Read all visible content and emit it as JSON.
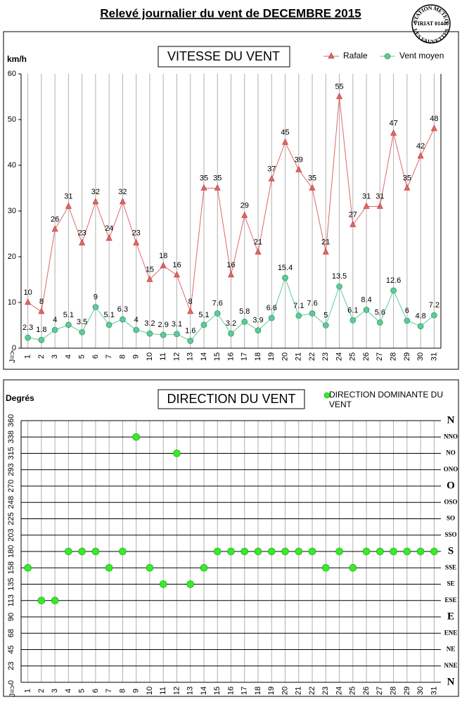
{
  "page_title": "Relevé journalier du vent de DECEMBRE 2015",
  "stamp": {
    "top": "STATION METEO",
    "middle": "VIRIAT 01440",
    "bottom": "LES FAUVETTES"
  },
  "chart_data": [
    {
      "type": "line",
      "title": "VITESSE DU VENT",
      "y_label": "km/h",
      "x_label": "J=>",
      "categories": [
        "1",
        "2",
        "3",
        "4",
        "5",
        "6",
        "7",
        "8",
        "9",
        "10",
        "11",
        "12",
        "13",
        "14",
        "15",
        "16",
        "17",
        "18",
        "19",
        "20",
        "21",
        "22",
        "23",
        "24",
        "25",
        "26",
        "27",
        "28",
        "29",
        "30",
        "31"
      ],
      "ylim": [
        0,
        60
      ],
      "yticks": [
        0,
        10,
        20,
        30,
        40,
        50,
        60
      ],
      "grid": "x",
      "legend": "top-right",
      "series": [
        {
          "name": "Rafale",
          "color": "#e06666",
          "marker": "triangle",
          "values": [
            10,
            8,
            26,
            31,
            23,
            32,
            24,
            32,
            23,
            15,
            18,
            16,
            8,
            35,
            35,
            16,
            29,
            21,
            37,
            45,
            39,
            35,
            21,
            55,
            27,
            31,
            31,
            47,
            35,
            42,
            48
          ]
        },
        {
          "name": "Vent moyen",
          "color": "#5cc9a0",
          "marker": "circle",
          "values": [
            2.3,
            1.8,
            4,
            5.1,
            3.5,
            9,
            5.1,
            6.3,
            4,
            3.2,
            2.9,
            3.1,
            1.6,
            5.1,
            7.6,
            3.2,
            5.8,
            3.9,
            6.6,
            15.4,
            7.1,
            7.6,
            5,
            13.5,
            6.1,
            8.4,
            5.6,
            12.6,
            6,
            4.8,
            7.2
          ]
        }
      ]
    },
    {
      "type": "scatter",
      "title": "DIRECTION DU VENT",
      "y_label": "Degrés",
      "x_label": "J=>",
      "categories": [
        "1",
        "2",
        "3",
        "4",
        "5",
        "6",
        "7",
        "8",
        "9",
        "10",
        "11",
        "12",
        "13",
        "14",
        "15",
        "16",
        "17",
        "18",
        "19",
        "20",
        "21",
        "22",
        "23",
        "24",
        "25",
        "26",
        "27",
        "28",
        "29",
        "30",
        "31"
      ],
      "ylim": [
        0,
        360
      ],
      "yticks": [
        0,
        {
          "value": 22.5,
          "label": "23"
        },
        45,
        {
          "value": 67.5,
          "label": "68"
        },
        90,
        {
          "value": 112.5,
          "label": "113"
        },
        135,
        {
          "value": 157.5,
          "label": "158"
        },
        180,
        {
          "value": 202.5,
          "label": "203"
        },
        225,
        {
          "value": 247.5,
          "label": "248"
        },
        270,
        {
          "value": 292.5,
          "label": "293"
        },
        315,
        {
          "value": 337.5,
          "label": "338"
        },
        360
      ],
      "y2lim": [
        0,
        360
      ],
      "y2ticks": [
        {
          "value": 0,
          "label": "N"
        },
        {
          "value": 22.5,
          "label": "NNE"
        },
        {
          "value": 45,
          "label": "NE"
        },
        {
          "value": 67.5,
          "label": "ENE"
        },
        {
          "value": 90,
          "label": "E"
        },
        {
          "value": 112.5,
          "label": "ESE"
        },
        {
          "value": 135,
          "label": "SE"
        },
        {
          "value": 157.5,
          "label": "SSE"
        },
        {
          "value": 180,
          "label": "S"
        },
        {
          "value": 202.5,
          "label": "SSO"
        },
        {
          "value": 225,
          "label": "SO"
        },
        {
          "value": 247.5,
          "label": "OSO"
        },
        {
          "value": 270,
          "label": "O"
        },
        {
          "value": 292.5,
          "label": "ONO"
        },
        {
          "value": 315,
          "label": "NO"
        },
        {
          "value": 337.5,
          "label": "NNO"
        },
        {
          "value": 360,
          "label": "N"
        }
      ],
      "grid": "both",
      "legend": "top-right",
      "series": [
        {
          "name": "DIRECTION DOMINANTE DU VENT",
          "color": "#33ee22",
          "marker": "circle",
          "values": [
            157.5,
            112.5,
            112.5,
            180,
            180,
            180,
            157.5,
            180,
            337.5,
            157.5,
            135,
            315,
            135,
            157.5,
            180,
            180,
            180,
            180,
            180,
            180,
            180,
            180,
            157.5,
            180,
            157.5,
            180,
            180,
            180,
            180,
            180,
            180
          ]
        }
      ]
    }
  ]
}
